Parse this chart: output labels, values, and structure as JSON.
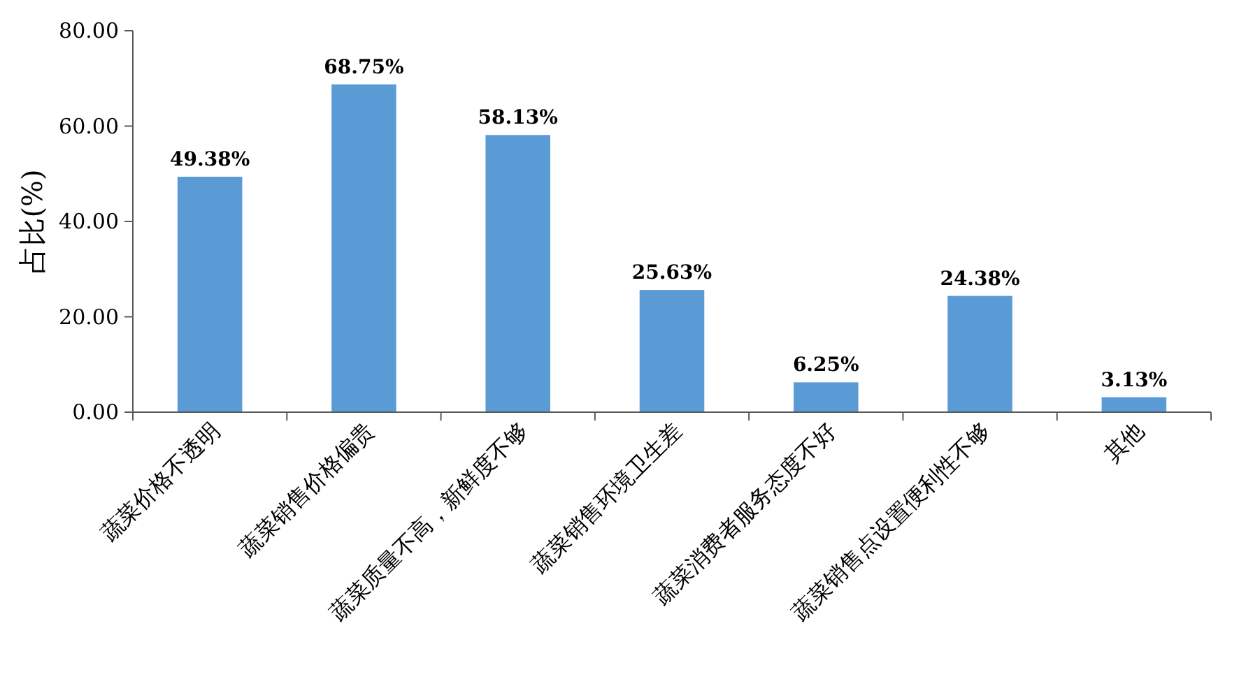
{
  "chart_data": {
    "type": "bar",
    "ylabel": "占比(%)",
    "categories": [
      "蔬菜价格不透明",
      "蔬菜销售价格偏贵",
      "蔬菜质量不高，新鲜度不够",
      "蔬菜销售环境卫生差",
      "蔬菜消费者服务态度不好",
      "蔬菜销售点设置便利性不够",
      "其他"
    ],
    "values": [
      49.38,
      68.75,
      58.13,
      25.63,
      6.25,
      24.38,
      3.13
    ],
    "value_labels": [
      "49.38%",
      "68.75%",
      "58.13%",
      "25.63%",
      "6.25%",
      "24.38%",
      "3.13%"
    ],
    "color": "#5b9bd5",
    "ylim": [
      0,
      80
    ],
    "yticks": [
      {
        "value": 0,
        "label": "0.00"
      },
      {
        "value": 20,
        "label": "20.00"
      },
      {
        "value": 40,
        "label": "40.00"
      },
      {
        "value": 60,
        "label": "60.00"
      },
      {
        "value": 80,
        "label": "80.00"
      }
    ],
    "grid": false
  }
}
